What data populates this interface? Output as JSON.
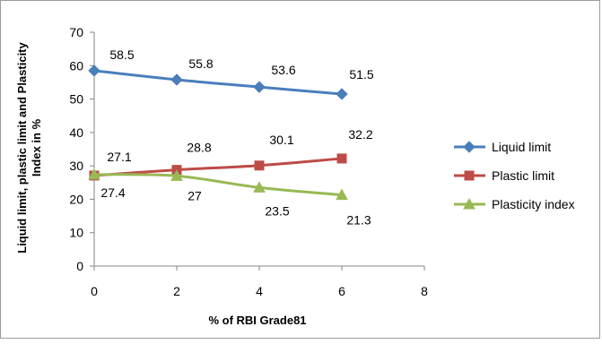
{
  "chart_data": {
    "type": "line",
    "xlabel": "% of RBI Grade81",
    "ylabel_lines": [
      "Liquid limit, plastic limit and Plasticity",
      "Index in %"
    ],
    "x": [
      0,
      2,
      4,
      6
    ],
    "xlim": [
      0,
      8
    ],
    "xticks": [
      "0",
      "2",
      "4",
      "6",
      "8"
    ],
    "ylim": [
      0,
      70
    ],
    "yticks": [
      "0",
      "10",
      "20",
      "30",
      "40",
      "50",
      "60",
      "70"
    ],
    "grid": false,
    "legend_position": "right",
    "series": [
      {
        "name": "Liquid limit",
        "values": [
          58.5,
          55.8,
          53.6,
          51.5
        ],
        "labels": [
          "58.5",
          "55.8",
          "53.6",
          "51.5"
        ],
        "color": "#4a7ebb",
        "marker": "diamond"
      },
      {
        "name": "Plastic limit",
        "values": [
          27.1,
          28.8,
          30.1,
          32.2
        ],
        "labels": [
          "27.1",
          "28.8",
          "30.1",
          "32.2"
        ],
        "color": "#be4b48",
        "marker": "square"
      },
      {
        "name": "Plasticity index",
        "values": [
          27.4,
          27,
          23.5,
          21.3
        ],
        "labels": [
          "27.4",
          "27",
          "23.5",
          "21.3"
        ],
        "color": "#98b954",
        "marker": "triangle"
      }
    ]
  }
}
